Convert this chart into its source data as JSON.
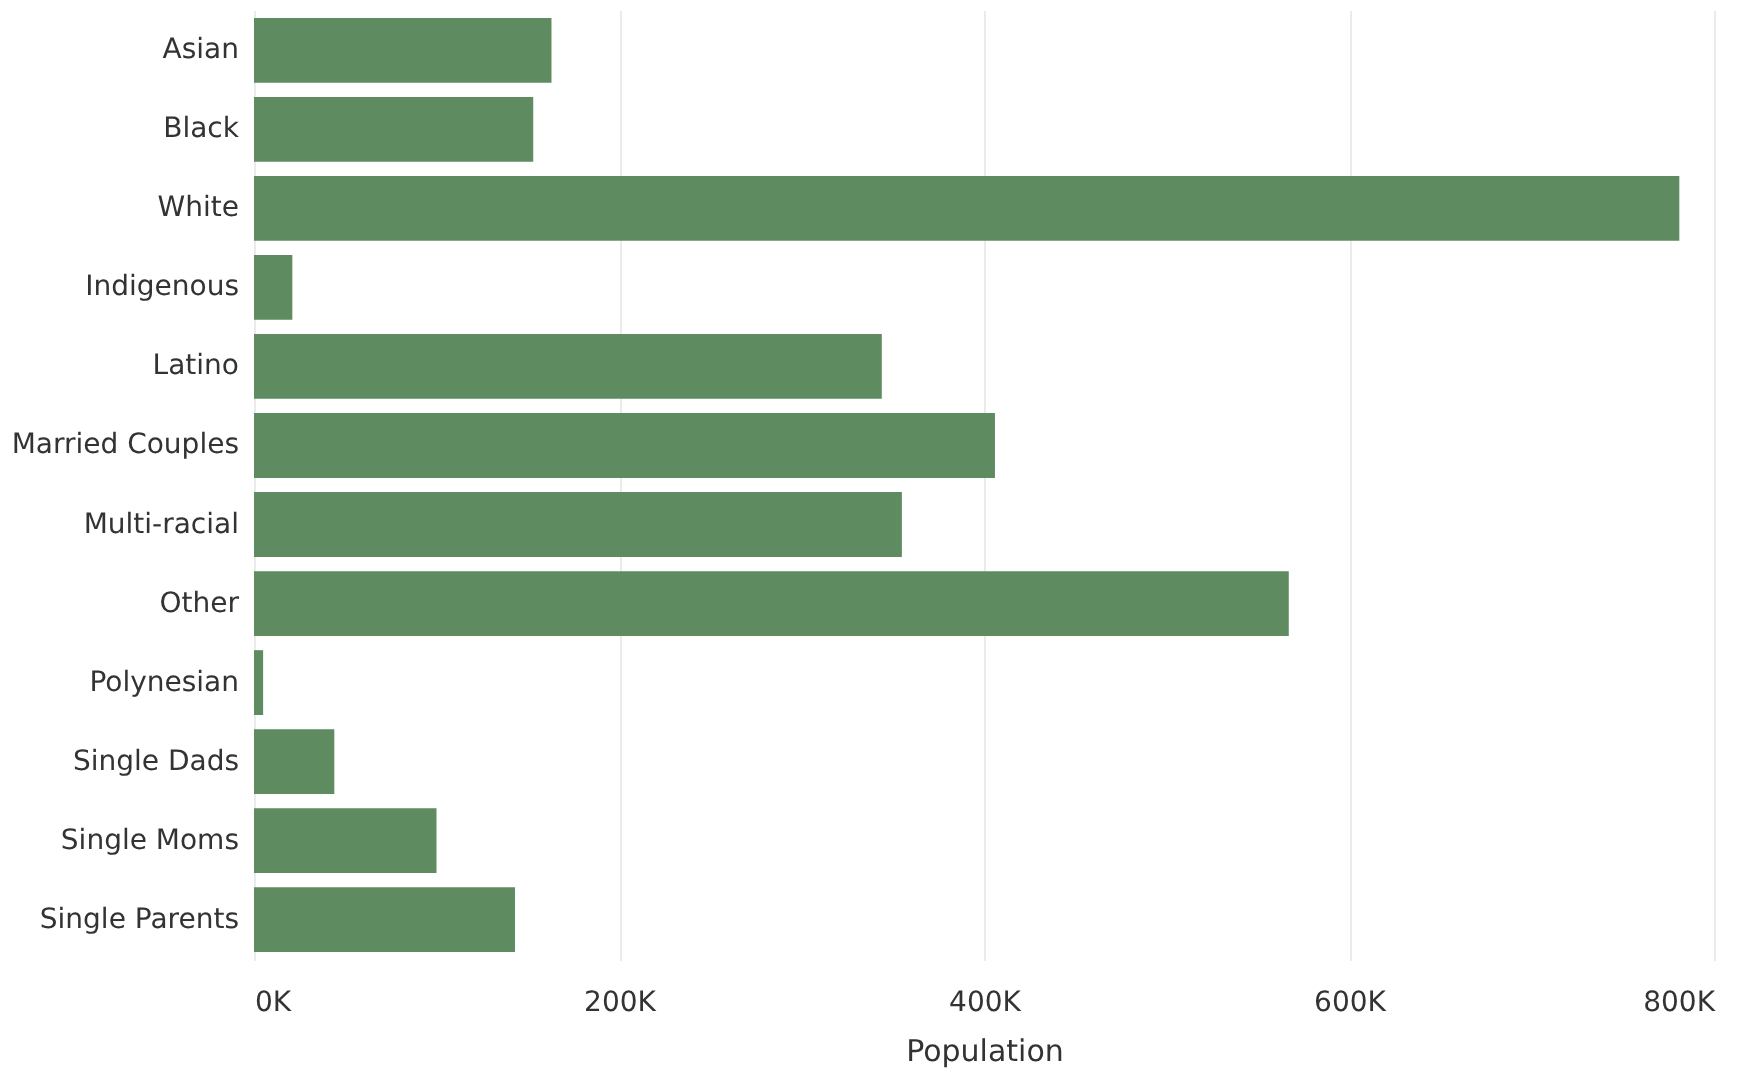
{
  "chart_data": {
    "type": "bar",
    "orientation": "horizontal",
    "xlabel": "Population",
    "categories": [
      "Asian",
      "Black",
      "White",
      "Indigenous",
      "Latino",
      "Married Couples",
      "Multi-racial",
      "Other",
      "Polynesian",
      "Single Dads",
      "Single Moms",
      "Single Parents"
    ],
    "values": [
      163000,
      153000,
      781000,
      21000,
      344000,
      406000,
      355000,
      567000,
      5000,
      44000,
      100000,
      143000
    ],
    "color": "#5f8b61",
    "xlim": [
      0,
      800000
    ],
    "xticks": [
      {
        "value": 0,
        "label": "0K"
      },
      {
        "value": 200000,
        "label": "200K"
      },
      {
        "value": 400000,
        "label": "400K"
      },
      {
        "value": 600000,
        "label": "600K"
      },
      {
        "value": 800000,
        "label": "800K"
      }
    ],
    "grid": "x"
  }
}
